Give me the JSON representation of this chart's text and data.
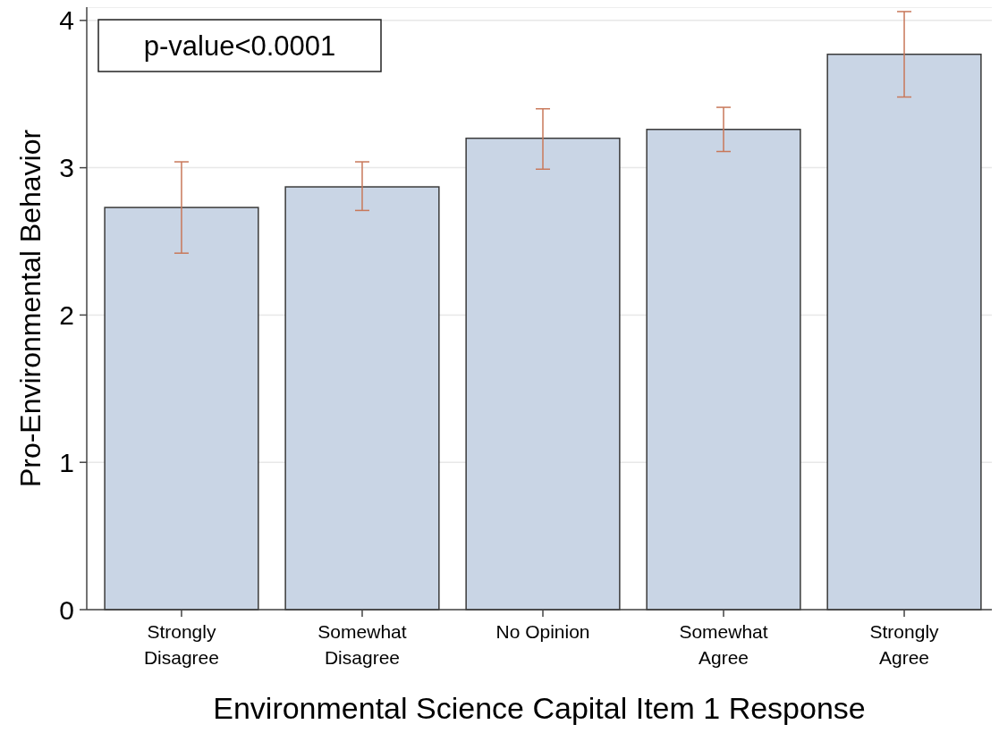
{
  "chart_data": {
    "type": "bar",
    "xlabel": "Environmental Science Capital Item 1 Response",
    "ylabel": "Pro-Environmental Behavior",
    "categories": [
      "Strongly\nDisagree",
      "Somewhat\nDisagree",
      "No Opinion",
      "Somewhat\nAgree",
      "Strongly\nAgree"
    ],
    "values": [
      2.73,
      2.87,
      3.2,
      3.26,
      3.77
    ],
    "errors": [
      [
        2.42,
        3.04
      ],
      [
        2.71,
        3.04
      ],
      [
        2.99,
        3.4
      ],
      [
        3.11,
        3.41
      ],
      [
        3.48,
        4.06
      ]
    ],
    "color": "#c9d5e5",
    "ylim": [
      0,
      4.09
    ],
    "yticks": [
      0,
      1,
      2,
      3,
      4
    ],
    "grid": "y",
    "annotations": [
      "p-value<0.0001"
    ]
  }
}
